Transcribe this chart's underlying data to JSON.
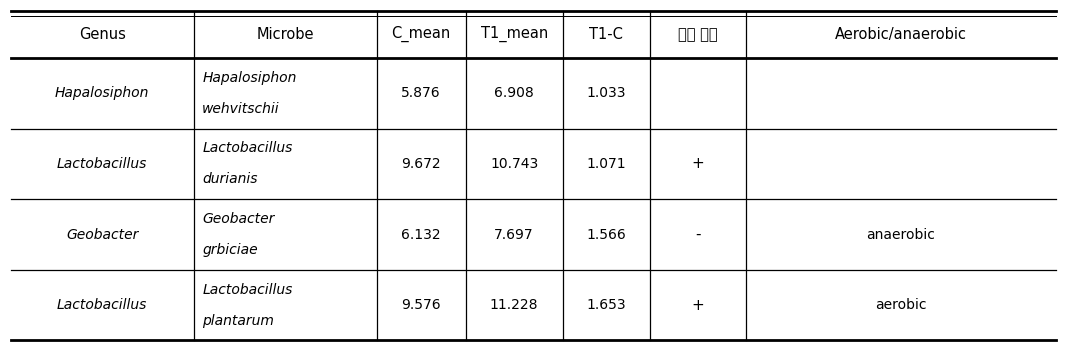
{
  "headers": [
    "Genus",
    "Microbe",
    "C_mean",
    "T1_mean",
    "T1-C",
    "그람 염색",
    "Aerobic/anaerobic"
  ],
  "rows": [
    {
      "genus": "Hapalosiphon",
      "microbe_line1": "Hapalosiphon",
      "microbe_line2": "wehvitschii",
      "c_mean": "5.876",
      "t1_mean": "6.908",
      "t1c": "1.033",
      "gram": "",
      "aerobic": ""
    },
    {
      "genus": "Lactobacillus",
      "microbe_line1": "Lactobacillus",
      "microbe_line2": "durianis",
      "c_mean": "9.672",
      "t1_mean": "10.743",
      "t1c": "1.071",
      "gram": "+",
      "aerobic": ""
    },
    {
      "genus": "Geobacter",
      "microbe_line1": "Geobacter",
      "microbe_line2": "grbiciae",
      "c_mean": "6.132",
      "t1_mean": "7.697",
      "t1c": "1.566",
      "gram": "-",
      "aerobic": "anaerobic"
    },
    {
      "genus": "Lactobacillus",
      "microbe_line1": "Lactobacillus",
      "microbe_line2": "plantarum",
      "c_mean": "9.576",
      "t1_mean": "11.228",
      "t1c": "1.653",
      "gram": "+",
      "aerobic": "aerobic"
    }
  ],
  "bg_color": "#ffffff",
  "line_color": "#000000",
  "text_color": "#000000",
  "header_fontsize": 10.5,
  "cell_fontsize": 10,
  "italic_fontsize": 10
}
